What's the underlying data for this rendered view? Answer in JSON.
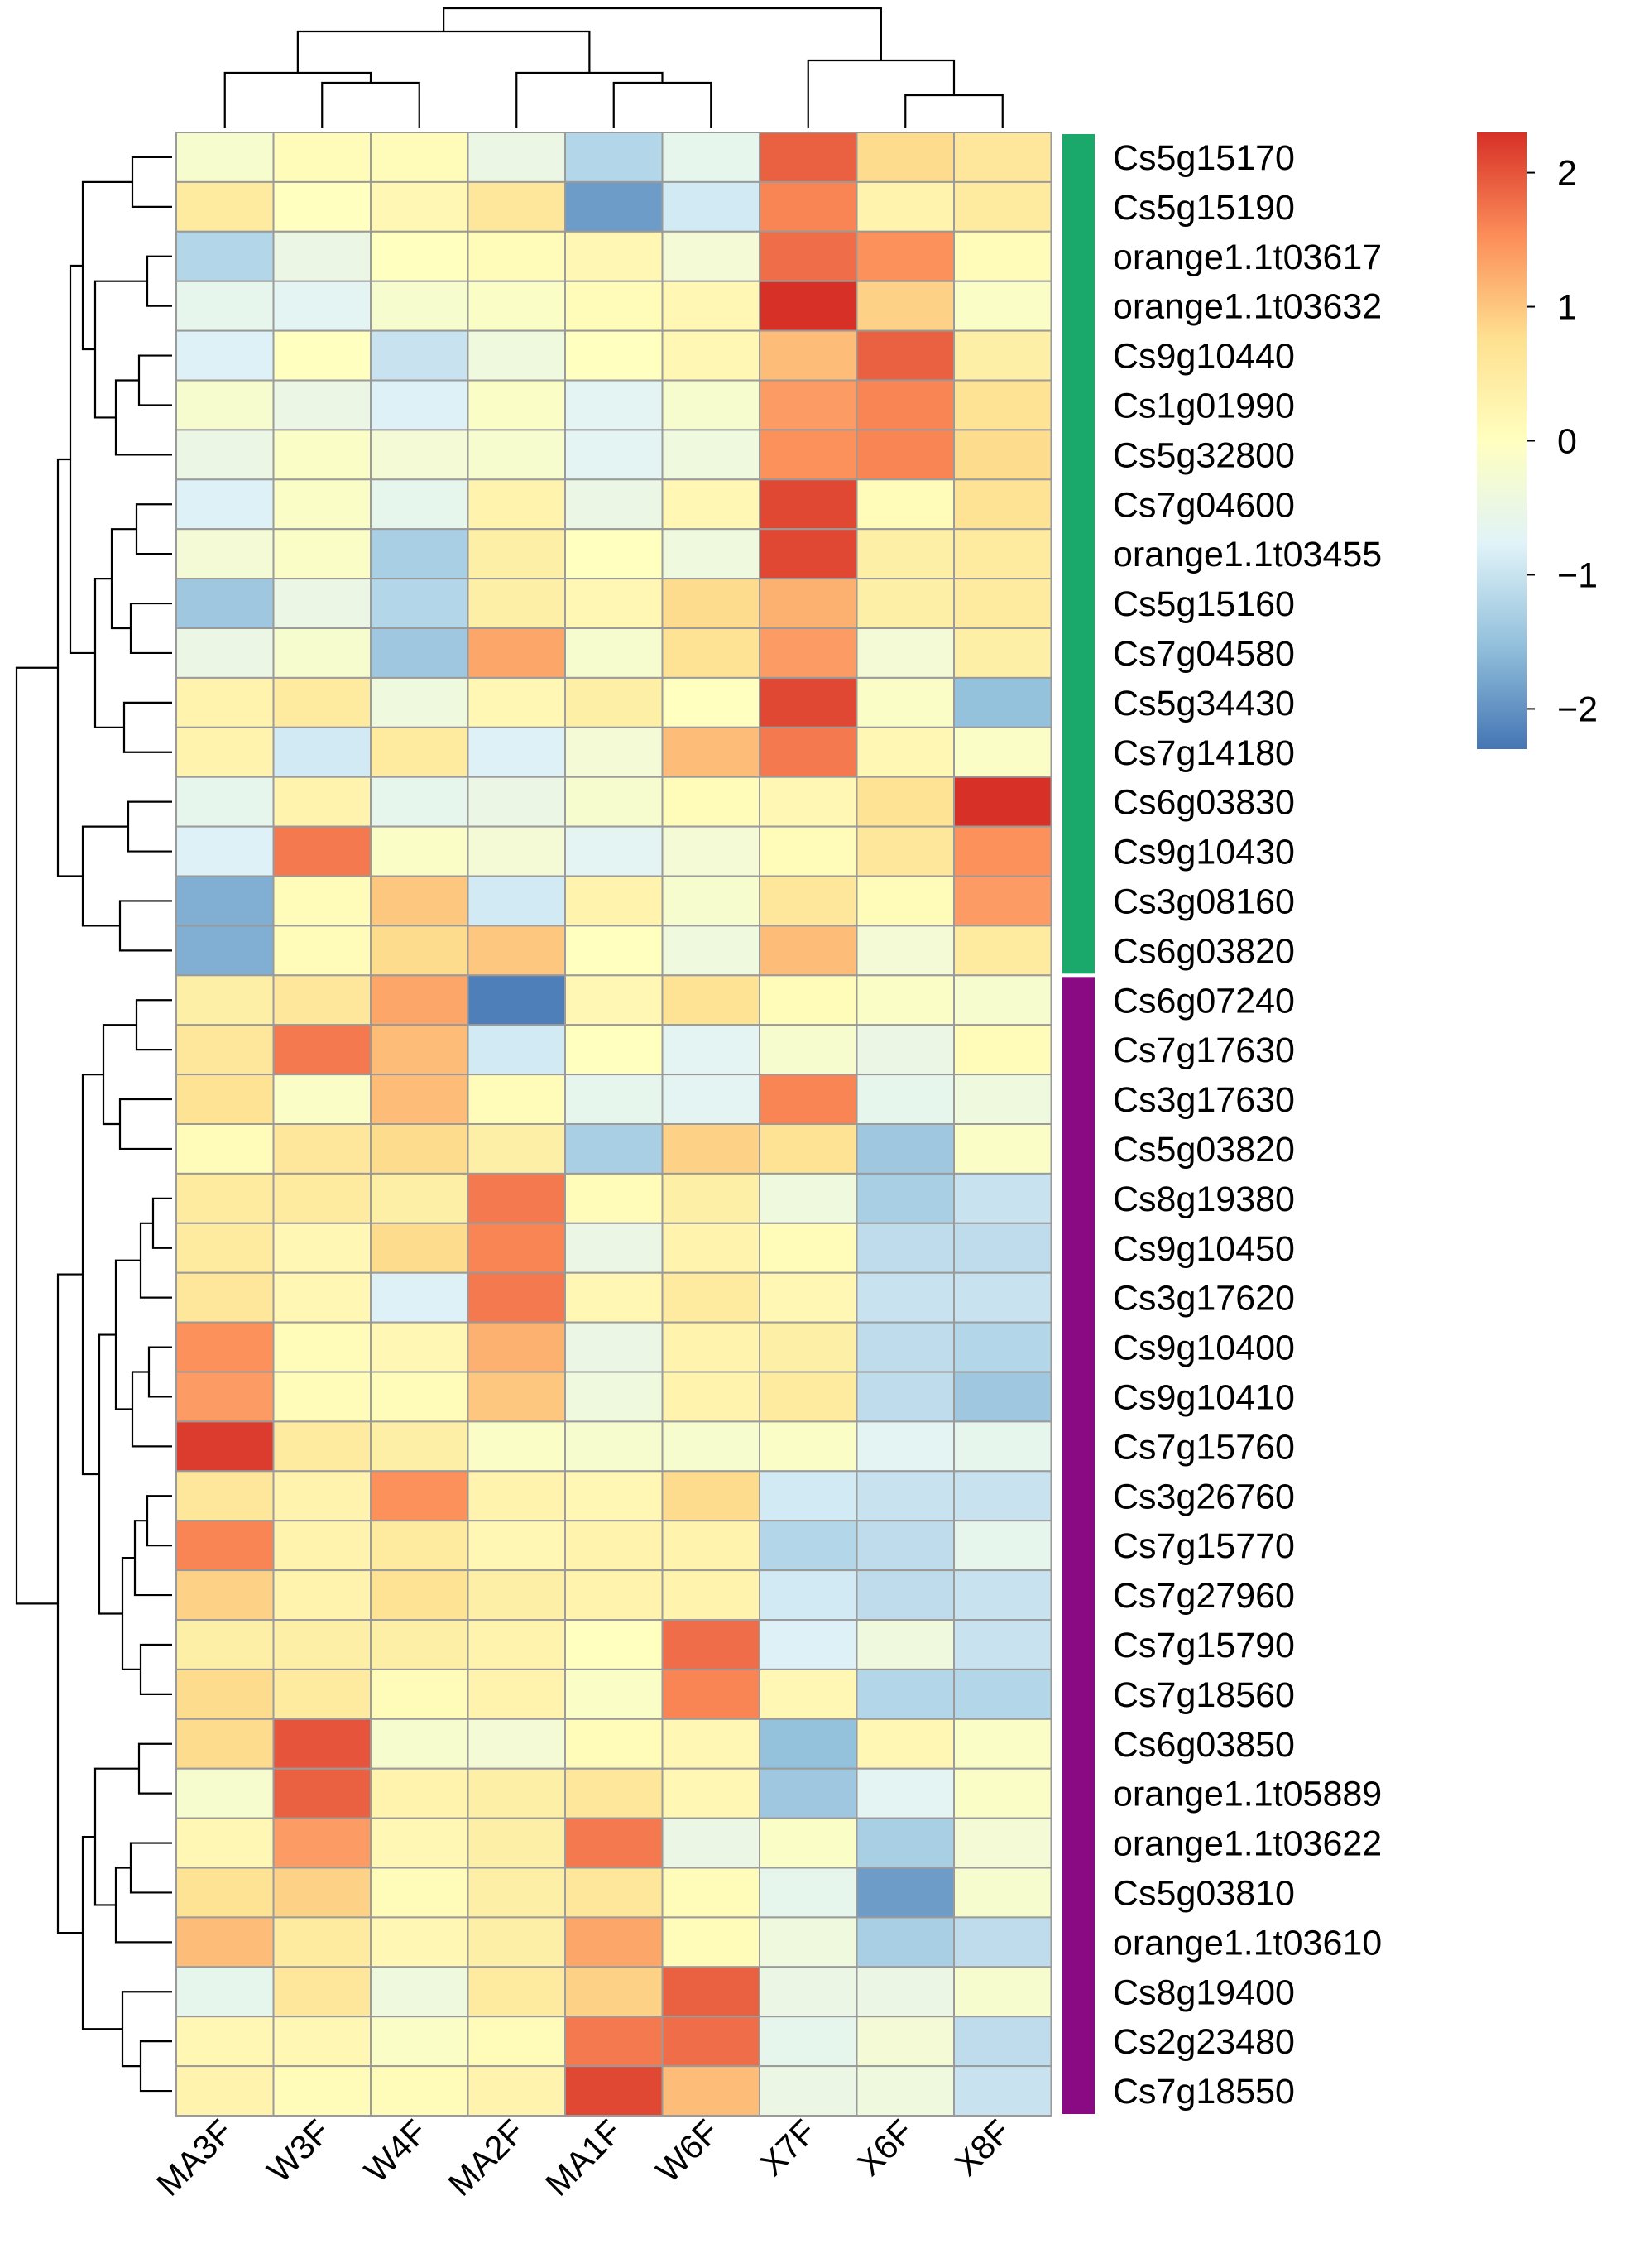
{
  "chart_data": {
    "type": "heatmap",
    "title": "",
    "columns": [
      "MA3F",
      "W3F",
      "W4F",
      "MA2F",
      "MA1F",
      "W6F",
      "X7F",
      "X6F",
      "X8F"
    ],
    "rows": [
      "Cs5g15170",
      "Cs5g15190",
      "orange1.1t03617",
      "orange1.1t03632",
      "Cs9g10440",
      "Cs1g01990",
      "Cs5g32800",
      "Cs7g04600",
      "orange1.1t03455",
      "Cs5g15160",
      "Cs7g04580",
      "Cs5g34430",
      "Cs7g14180",
      "Cs6g03830",
      "Cs9g10430",
      "Cs3g08160",
      "Cs6g03820",
      "Cs6g07240",
      "Cs7g17630",
      "Cs3g17630",
      "Cs5g03820",
      "Cs8g19380",
      "Cs9g10450",
      "Cs3g17620",
      "Cs9g10400",
      "Cs9g10410",
      "Cs7g15760",
      "Cs3g26760",
      "Cs7g15770",
      "Cs7g27960",
      "Cs7g15790",
      "Cs7g18560",
      "Cs6g03850",
      "orange1.1t05889",
      "orange1.1t03622",
      "Cs5g03810",
      "orange1.1t03610",
      "Cs8g19400",
      "Cs2g23480",
      "Cs7g18550"
    ],
    "values": [
      [
        -0.2,
        0.1,
        0.1,
        -0.5,
        -1.2,
        -0.6,
        1.9,
        0.8,
        0.6
      ],
      [
        0.5,
        0.0,
        0.2,
        0.6,
        -1.9,
        -0.9,
        1.6,
        0.3,
        0.5
      ],
      [
        -1.2,
        -0.5,
        0.0,
        0.1,
        0.2,
        -0.3,
        1.8,
        1.5,
        0.1
      ],
      [
        -0.6,
        -0.7,
        -0.2,
        -0.1,
        0.1,
        0.2,
        2.3,
        0.9,
        -0.1
      ],
      [
        -0.8,
        0.0,
        -1.0,
        -0.4,
        0.0,
        0.2,
        1.1,
        1.9,
        0.4
      ],
      [
        -0.2,
        -0.5,
        -0.8,
        -0.1,
        -0.7,
        -0.2,
        1.4,
        1.6,
        0.7
      ],
      [
        -0.5,
        -0.1,
        -0.3,
        -0.2,
        -0.7,
        -0.4,
        1.5,
        1.6,
        0.8
      ],
      [
        -0.8,
        -0.1,
        -0.6,
        0.3,
        -0.5,
        0.2,
        2.1,
        0.1,
        0.7
      ],
      [
        -0.3,
        -0.1,
        -1.3,
        0.4,
        0.0,
        -0.4,
        2.1,
        0.4,
        0.5
      ],
      [
        -1.4,
        -0.5,
        -1.2,
        0.4,
        0.2,
        0.8,
        1.2,
        0.4,
        0.5
      ],
      [
        -0.5,
        -0.2,
        -1.4,
        1.3,
        -0.2,
        0.7,
        1.4,
        -0.3,
        0.4
      ],
      [
        0.3,
        0.5,
        -0.4,
        0.2,
        0.4,
        0.0,
        2.1,
        -0.1,
        -1.5
      ],
      [
        0.3,
        -0.9,
        0.5,
        -0.8,
        -0.3,
        1.1,
        1.7,
        0.2,
        -0.1
      ],
      [
        -0.6,
        0.3,
        -0.6,
        -0.5,
        -0.2,
        0.1,
        0.2,
        0.7,
        2.3
      ],
      [
        -0.8,
        1.7,
        -0.1,
        -0.3,
        -0.7,
        -0.3,
        0.1,
        0.6,
        1.5
      ],
      [
        -1.7,
        0.1,
        1.0,
        -0.9,
        0.3,
        -0.2,
        0.6,
        0.1,
        1.4
      ],
      [
        -1.7,
        0.1,
        0.8,
        1.0,
        0.0,
        -0.4,
        1.1,
        -0.3,
        0.5
      ],
      [
        0.4,
        0.6,
        1.3,
        -2.2,
        0.2,
        0.7,
        0.1,
        -0.1,
        -0.2
      ],
      [
        0.6,
        1.7,
        1.1,
        -0.9,
        0.0,
        -0.7,
        -0.2,
        -0.5,
        0.1
      ],
      [
        0.7,
        -0.1,
        1.1,
        0.1,
        -0.6,
        -0.7,
        1.6,
        -0.6,
        -0.4
      ],
      [
        0.1,
        0.6,
        0.8,
        0.4,
        -1.3,
        0.9,
        0.7,
        -1.4,
        -0.1
      ],
      [
        0.5,
        0.5,
        0.4,
        1.7,
        0.1,
        0.4,
        -0.4,
        -1.3,
        -1.0
      ],
      [
        0.5,
        0.2,
        0.8,
        1.6,
        -0.5,
        0.3,
        0.1,
        -1.1,
        -1.1
      ],
      [
        0.6,
        0.2,
        -0.8,
        1.7,
        0.2,
        0.5,
        0.2,
        -1.0,
        -1.0
      ],
      [
        1.5,
        0.1,
        0.2,
        1.2,
        -0.5,
        0.3,
        0.4,
        -1.1,
        -1.2
      ],
      [
        1.4,
        0.1,
        0.1,
        1.0,
        -0.4,
        0.3,
        0.5,
        -1.1,
        -1.4
      ],
      [
        2.2,
        0.5,
        0.4,
        -0.1,
        -0.2,
        -0.2,
        -0.1,
        -0.7,
        -0.6
      ],
      [
        0.6,
        0.3,
        1.5,
        0.3,
        0.2,
        0.8,
        -0.9,
        -1.0,
        -1.0
      ],
      [
        1.6,
        0.3,
        0.5,
        0.2,
        0.3,
        0.3,
        -1.2,
        -1.1,
        -0.6
      ],
      [
        0.9,
        0.3,
        0.7,
        0.4,
        0.3,
        0.3,
        -0.9,
        -1.1,
        -1.0
      ],
      [
        0.4,
        0.4,
        0.4,
        0.3,
        0.0,
        1.8,
        -0.8,
        -0.4,
        -1.0
      ],
      [
        0.8,
        0.5,
        0.1,
        0.3,
        -0.1,
        1.6,
        0.2,
        -1.2,
        -1.2
      ],
      [
        0.8,
        2.0,
        -0.2,
        -0.3,
        0.1,
        0.2,
        -1.5,
        0.2,
        -0.1
      ],
      [
        -0.2,
        1.9,
        0.3,
        0.4,
        0.6,
        0.2,
        -1.4,
        -0.7,
        -0.1
      ],
      [
        0.2,
        1.4,
        0.2,
        0.4,
        1.7,
        -0.5,
        -0.1,
        -1.3,
        -0.3
      ],
      [
        0.7,
        0.9,
        0.1,
        0.4,
        0.6,
        0.1,
        -0.6,
        -1.9,
        -0.2
      ],
      [
        1.1,
        0.5,
        0.2,
        0.4,
        1.3,
        0.1,
        -0.4,
        -1.3,
        -1.1
      ],
      [
        -0.6,
        0.6,
        -0.4,
        0.5,
        0.9,
        1.9,
        -0.5,
        -0.5,
        -0.2
      ],
      [
        0.2,
        0.2,
        -0.1,
        0.1,
        1.7,
        1.8,
        -0.6,
        -0.3,
        -1.1
      ],
      [
        0.3,
        0.1,
        0.1,
        0.3,
        2.1,
        1.1,
        -0.5,
        -0.4,
        -1.0
      ]
    ],
    "groups": [
      {
        "name": "green",
        "start": 0,
        "end": 16,
        "color": "#1aa96a"
      },
      {
        "name": "purple",
        "start": 17,
        "end": 39,
        "color": "#8a0a84"
      }
    ],
    "colorbar": {
      "min": -2.3,
      "max": 2.3,
      "ticks": [
        2,
        1,
        0,
        -1,
        -2
      ],
      "tick_labels": [
        "2",
        "1",
        "0",
        "−1",
        "−2"
      ]
    },
    "colormap": [
      "#4575b4",
      "#91bfdb",
      "#e0f3f8",
      "#ffffbf",
      "#fee090",
      "#fc8d59",
      "#d73027"
    ],
    "column_dendrogram_order": "((MA3F,(W3F,W4F)),(MA2F,(MA1F,W6F))),(X7F,(X6F,X8F))",
    "row_dendrogram": true
  }
}
